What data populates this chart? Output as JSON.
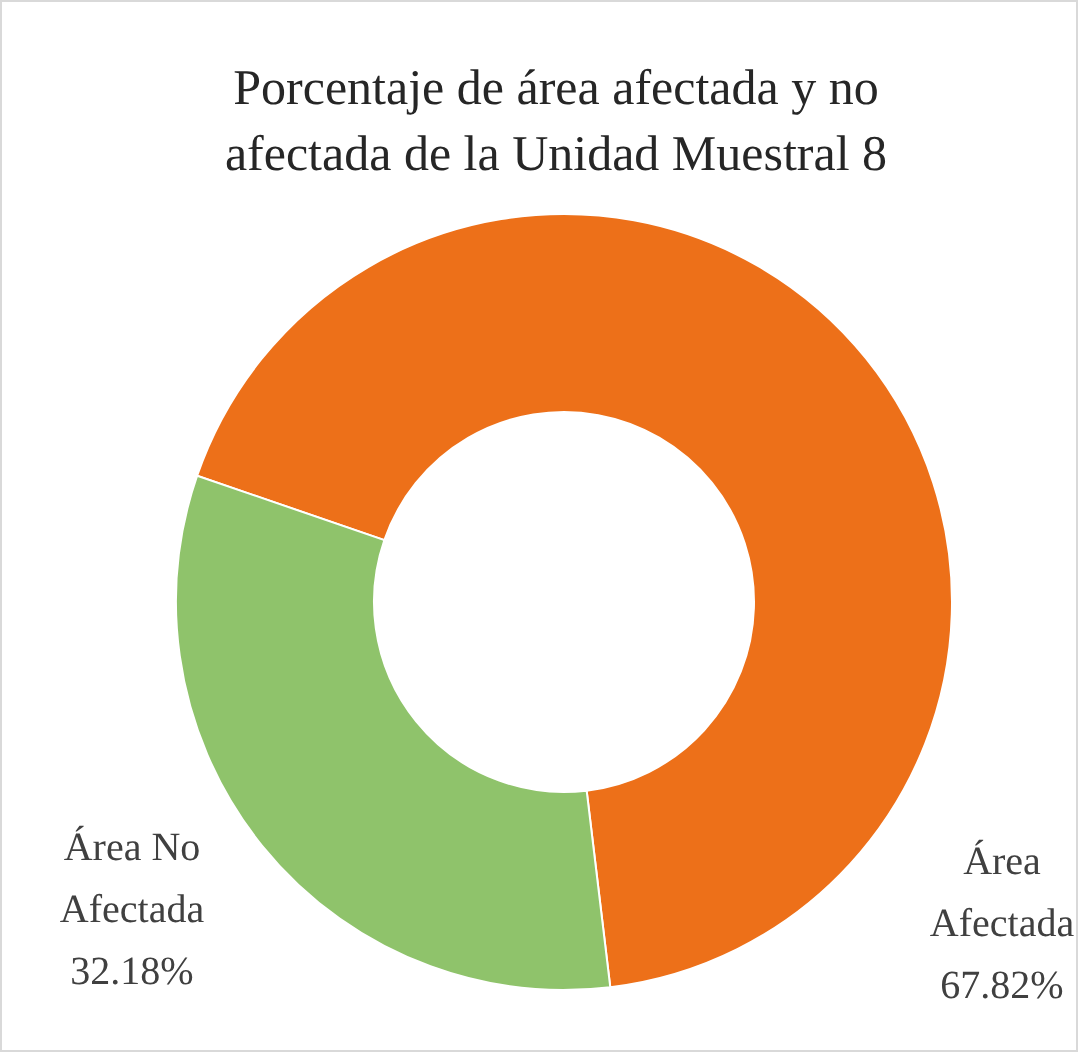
{
  "chart_data": {
    "type": "donut",
    "title": "Porcentaje de área afectada y no afectada de la Unidad Muestral 8",
    "categories": [
      "Área Afectada",
      "Área No Afectada"
    ],
    "values": [
      67.82,
      32.18
    ],
    "colors": [
      "#ed7019",
      "#8fc36b"
    ],
    "value_labels": [
      "67.82%",
      "32.18%"
    ]
  }
}
